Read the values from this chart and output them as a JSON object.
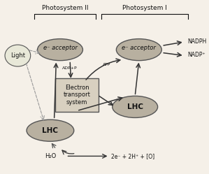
{
  "bg_color": "#f5f0e8",
  "ellipse_color": "#b8b0a0",
  "ellipse_edge": "#555555",
  "box_color": "#d8d0c0",
  "box_edge": "#555555",
  "text_color": "#111111",
  "title": "",
  "ps2_label": "Photosystem II",
  "ps1_label": "Photosystem I",
  "light_label": "Light",
  "e_acc_ps2": "e acceptor",
  "e_acc_ps1": "e acceptor",
  "lhc_ps2": "LHC",
  "lhc_ps1": "LHC",
  "ets_label": "Electron\ntransport\nsystem",
  "adp_label": "ADP+P",
  "atp_label": "ATP",
  "nadph_label": "NADPH",
  "nadp_label": "NADP⁺",
  "h2o_label": "H₂O",
  "reaction_label": "2e⁻ + 2H⁺ + [O]",
  "figsize": [
    2.99,
    2.49
  ],
  "dpi": 100
}
